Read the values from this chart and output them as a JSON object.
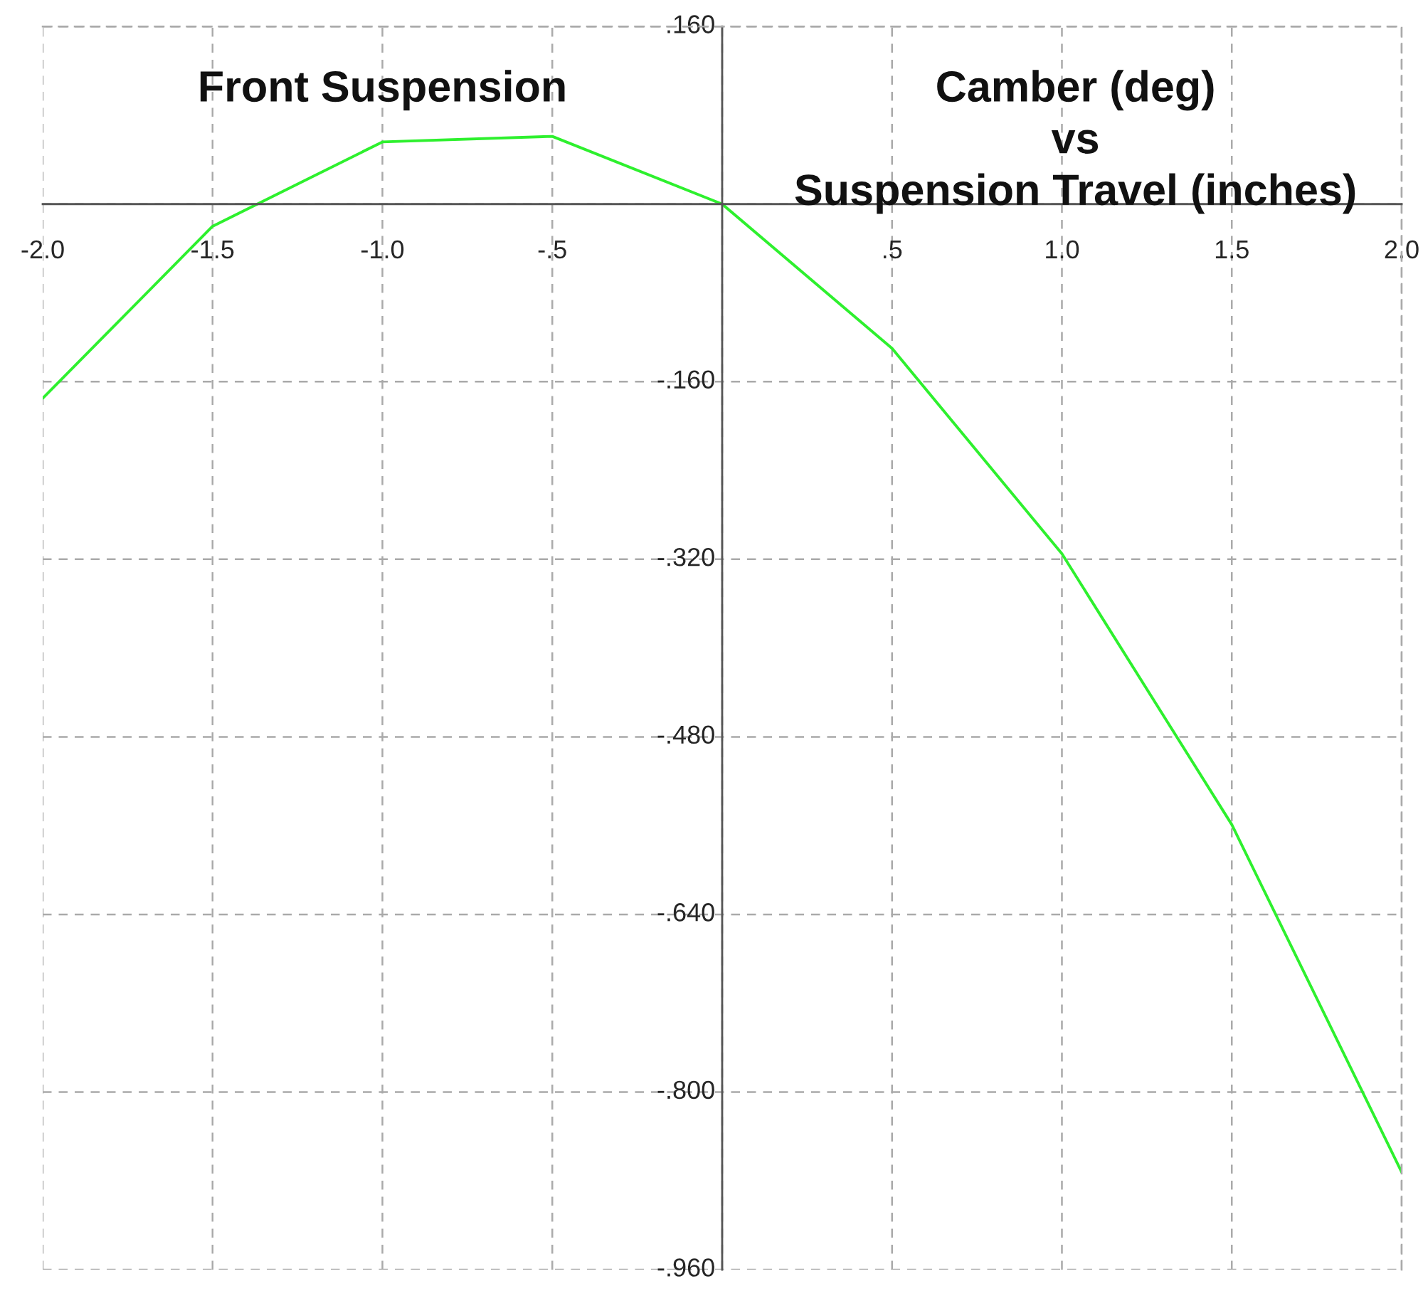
{
  "chart_data": {
    "type": "line",
    "annotations": [
      "Front Suspension",
      "Camber (deg)\nvs\nSuspension Travel (inches)"
    ],
    "x": [
      -2.0,
      -1.5,
      -1.0,
      -0.5,
      0.0,
      0.5,
      1.0,
      1.5,
      2.0
    ],
    "series": [
      {
        "color": "#2ef02e",
        "values": [
          -0.175,
          -0.02,
          0.056,
          0.061,
          0.0,
          -0.13,
          -0.315,
          -0.559,
          -0.872
        ]
      }
    ],
    "xlim": [
      -2.0,
      2.0
    ],
    "xticks": [
      {
        "value": -2.0,
        "label": "-2.0"
      },
      {
        "value": -1.5,
        "label": "-1.5"
      },
      {
        "value": -1.0,
        "label": "-1.0"
      },
      {
        "value": -0.5,
        "label": "-.5"
      },
      {
        "value": 0,
        "label": null
      },
      {
        "value": 0.5,
        "label": ".5"
      },
      {
        "value": 1.0,
        "label": "1.0"
      },
      {
        "value": 1.5,
        "label": "1.5"
      },
      {
        "value": 2.0,
        "label": "2.0"
      }
    ],
    "ylim": [
      -0.96,
      0.16
    ],
    "yticks": [
      {
        "value": 0.16,
        "label": ".160"
      },
      {
        "value": 0,
        "label": null
      },
      {
        "value": -0.16,
        "label": "-.160"
      },
      {
        "value": -0.32,
        "label": "-.320"
      },
      {
        "value": -0.48,
        "label": "-.480"
      },
      {
        "value": -0.64,
        "label": "-.640"
      },
      {
        "value": -0.8,
        "label": "-.800"
      },
      {
        "value": -0.96,
        "label": "-.960"
      }
    ],
    "grid": true,
    "line_style": "solid",
    "marker": "none"
  }
}
